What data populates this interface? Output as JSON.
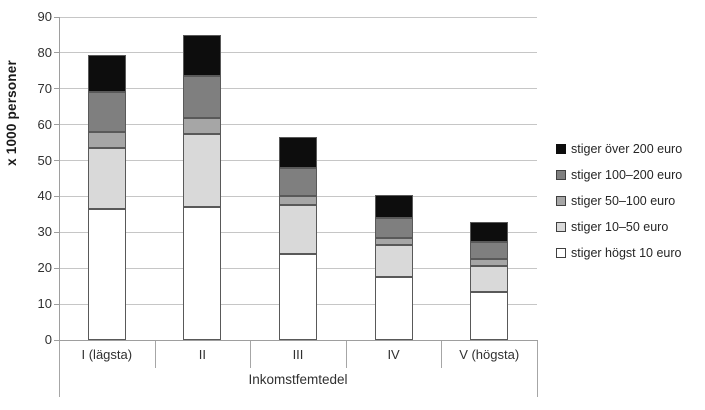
{
  "chart_data": {
    "type": "bar",
    "stacked": true,
    "orientation": "vertical",
    "categories": [
      "I (lägsta)",
      "II",
      "III",
      "IV",
      "V (högsta)"
    ],
    "series": [
      {
        "name": "stiger högst 10 euro",
        "color": "#ffffff",
        "values": [
          36.5,
          37.0,
          24.0,
          17.5,
          13.5
        ]
      },
      {
        "name": "stiger 10–50 euro",
        "color": "#d9d9d9",
        "values": [
          17.0,
          20.5,
          13.5,
          9.0,
          7.0
        ]
      },
      {
        "name": "stiger 50–100 euro",
        "color": "#a6a6a6",
        "values": [
          4.5,
          4.5,
          2.5,
          2.0,
          2.0
        ]
      },
      {
        "name": "stiger 100–200 euro",
        "color": "#7f7f7f",
        "values": [
          11.0,
          11.5,
          8.0,
          5.5,
          4.7
        ]
      },
      {
        "name": "stiger över 200 euro",
        "color": "#0d0d0d",
        "values": [
          10.5,
          11.5,
          8.5,
          6.5,
          5.8
        ]
      }
    ],
    "totals": [
      79.5,
      85.0,
      56.5,
      40.5,
      33.0
    ],
    "xlabel": "Inkomstfemtedel",
    "ylabel": "x 1000 personer",
    "ylim": [
      0,
      90
    ],
    "yticks": [
      0,
      10,
      20,
      30,
      40,
      50,
      60,
      70,
      80,
      90
    ],
    "grid": true,
    "legend_position": "right",
    "legend_order_top_to_bottom": [
      "stiger över 200 euro",
      "stiger 100–200 euro",
      "stiger 50–100 euro",
      "stiger 10–50 euro",
      "stiger högst 10 euro"
    ]
  },
  "colors": {
    "gridline": "#c6c6c6",
    "axis": "#9e9e9e",
    "bar_border": "#595959",
    "text": "#303030"
  }
}
